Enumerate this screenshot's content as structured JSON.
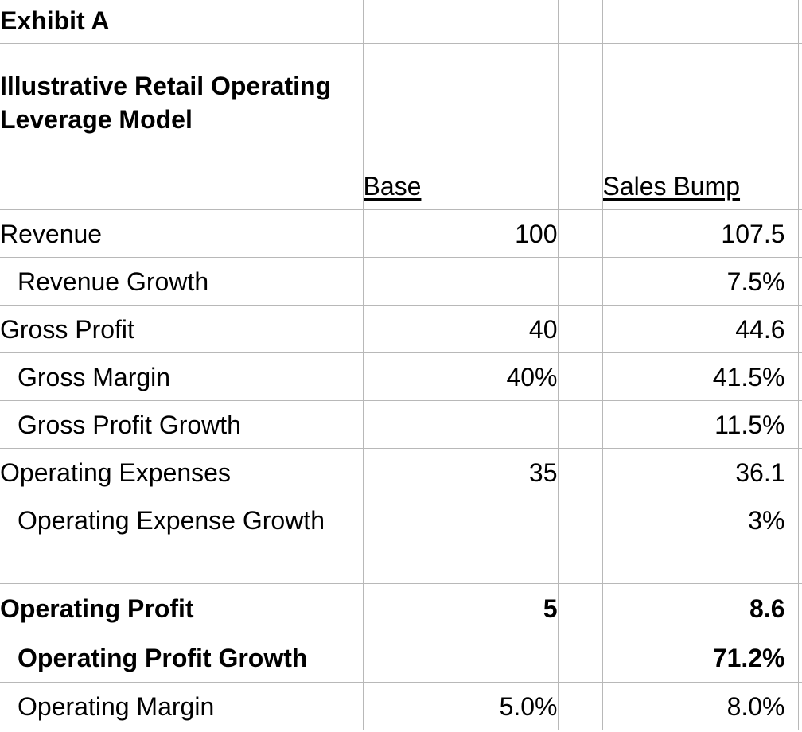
{
  "exhibit": {
    "title": "Exhibit A",
    "subtitle": "Illustrative Retail Operating Leverage Model"
  },
  "columns": {
    "base": "Base",
    "sales_bump": "Sales Bump"
  },
  "rows": [
    {
      "label": "Revenue",
      "base": "100",
      "bump": "107.5"
    },
    {
      "label": "Revenue Growth",
      "base": "",
      "bump": "7.5%"
    },
    {
      "label": "Gross Profit",
      "base": "40",
      "bump": "44.6"
    },
    {
      "label": "Gross Margin",
      "base": "40%",
      "bump": "41.5%"
    },
    {
      "label": "Gross Profit Growth",
      "base": "",
      "bump": "11.5%"
    },
    {
      "label": "Operating Expenses",
      "base": "35",
      "bump": "36.1"
    },
    {
      "label": "Operating Expense Growth",
      "base": "",
      "bump": "3%"
    },
    {
      "label": "Operating Profit",
      "base": "5",
      "bump": "8.6"
    },
    {
      "label": "Operating Profit Growth",
      "base": "",
      "bump": "71.2%"
    },
    {
      "label": "Operating Margin",
      "base": "5.0%",
      "bump": "8.0%"
    }
  ]
}
